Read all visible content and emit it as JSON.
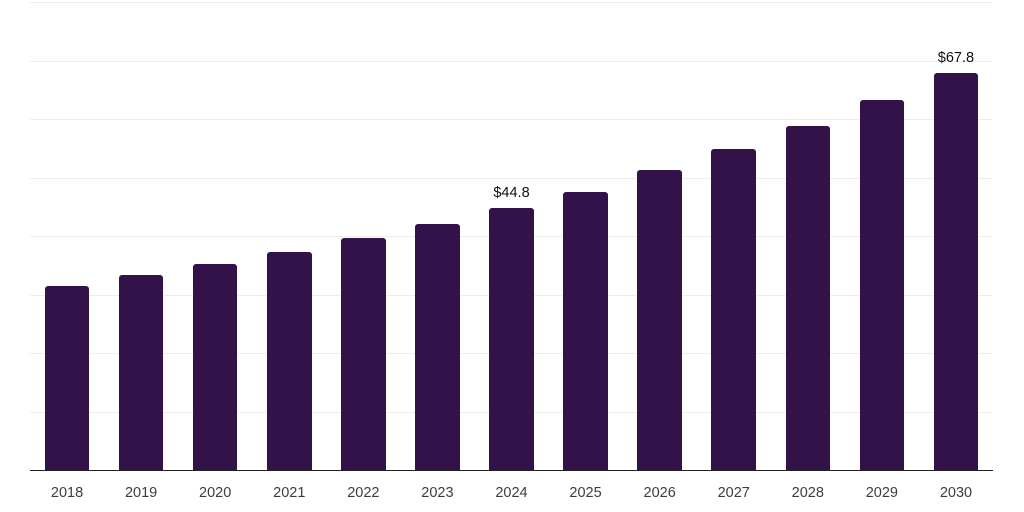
{
  "chart_data": {
    "type": "bar",
    "title": "",
    "xlabel": "",
    "ylabel": "",
    "categories": [
      "2018",
      "2019",
      "2020",
      "2021",
      "2022",
      "2023",
      "2024",
      "2025",
      "2026",
      "2027",
      "2028",
      "2029",
      "2030"
    ],
    "values": [
      31.4,
      33.3,
      35.3,
      37.2,
      39.6,
      42.0,
      44.8,
      47.6,
      51.3,
      54.9,
      58.8,
      63.2,
      67.8
    ],
    "data_labels": [
      null,
      null,
      null,
      null,
      null,
      null,
      "$44.8",
      null,
      null,
      null,
      null,
      null,
      "$67.8"
    ],
    "ylim": [
      0,
      80
    ],
    "grid_step": 10,
    "grid": "horizontal",
    "y_tick_labels_visible": false,
    "legend_position": "none",
    "colors": {
      "bar": "#321248",
      "gridline": "#ededed",
      "axis_line": "#222222",
      "value_label": "#111111",
      "tick_label": "#3d3d3d",
      "background": "#ffffff"
    }
  }
}
